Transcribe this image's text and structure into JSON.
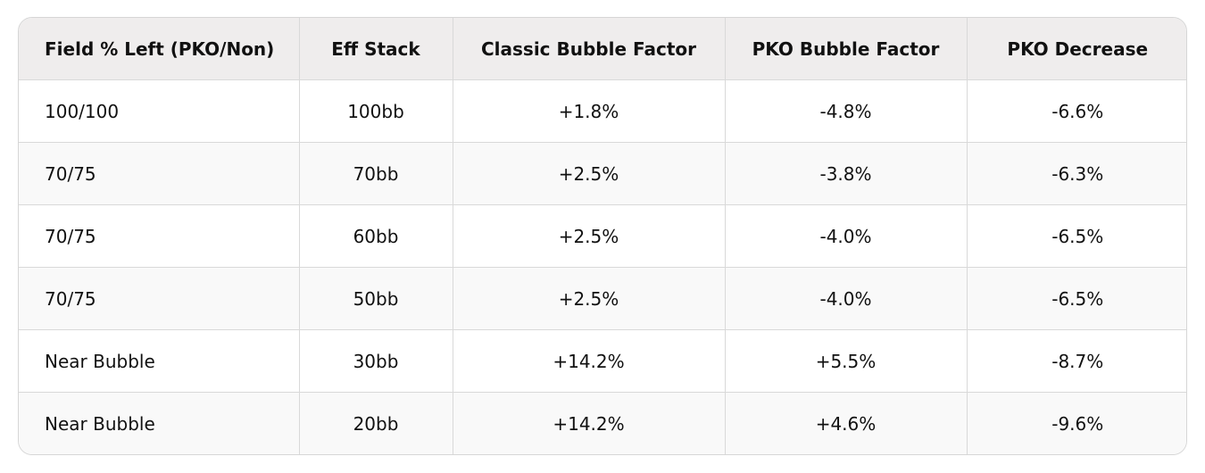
{
  "table": {
    "header": [
      "Field % Left (PKO/Non)",
      "Eff Stack",
      "Classic Bubble Factor",
      "PKO Bubble Factor",
      "PKO Decrease"
    ],
    "rows": [
      [
        "100/100",
        "100bb",
        "+1.8%",
        "-4.8%",
        "-6.6%"
      ],
      [
        "70/75",
        "70bb",
        "+2.5%",
        "-3.8%",
        "-6.3%"
      ],
      [
        "70/75",
        "60bb",
        "+2.5%",
        "-4.0%",
        "-6.5%"
      ],
      [
        "70/75",
        "50bb",
        "+2.5%",
        "-4.0%",
        "-6.5%"
      ],
      [
        "Near Bubble",
        "30bb",
        "+14.2%",
        "+5.5%",
        "-8.7%"
      ],
      [
        "Near Bubble",
        "20bb",
        "+14.2%",
        "+4.6%",
        "-9.6%"
      ]
    ]
  }
}
